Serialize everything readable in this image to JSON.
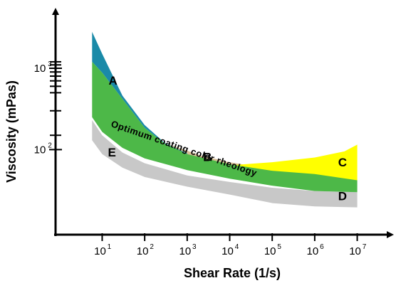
{
  "chart_data": {
    "type": "area",
    "xlabel": "Shear Rate (1/s)",
    "ylabel": "Viscosity (mPas)",
    "x_scale": "log",
    "y_scale": "log",
    "x_ticks": [
      {
        "value": 10,
        "base": "10",
        "exp": "1"
      },
      {
        "value": 100,
        "base": "10",
        "exp": "2"
      },
      {
        "value": 1000,
        "base": "10",
        "exp": "3"
      },
      {
        "value": 10000,
        "base": "10",
        "exp": "4"
      },
      {
        "value": 100000,
        "base": "10",
        "exp": "5"
      },
      {
        "value": 1000000,
        "base": "10",
        "exp": "6"
      },
      {
        "value": 10000000,
        "base": "10",
        "exp": "7"
      }
    ],
    "y_ticks": [
      {
        "value": 100,
        "base": "10",
        "exp": "2"
      },
      {
        "value": 1000,
        "base": "10",
        "exp": "3"
      }
    ],
    "y_minor_ticks": [
      150,
      300,
      500,
      600,
      700,
      800,
      900,
      1100,
      1200
    ],
    "xlim": [
      0.8,
      60000000
    ],
    "ylim": [
      9,
      5000
    ],
    "regions": [
      {
        "label": "D",
        "color": "#c8c8c8",
        "upper": [
          [
            5.8,
            230
          ],
          [
            10,
            150
          ],
          [
            30,
            92
          ],
          [
            100,
            68
          ],
          [
            1000,
            48
          ],
          [
            10000,
            40
          ],
          [
            100000,
            34
          ],
          [
            1000000,
            31
          ],
          [
            10000000,
            30
          ]
        ],
        "lower": [
          [
            5.8,
            130
          ],
          [
            10,
            88
          ],
          [
            30,
            60
          ],
          [
            100,
            46
          ],
          [
            1000,
            35
          ],
          [
            10000,
            28
          ],
          [
            100000,
            22
          ],
          [
            1000000,
            20
          ],
          [
            10000000,
            19.5
          ]
        ]
      },
      {
        "label": "B",
        "color": "#d8bf98",
        "upper": [
          [
            400,
            115
          ],
          [
            2000,
            85
          ],
          [
            10000,
            70
          ],
          [
            40000,
            62
          ]
        ],
        "lower": [
          [
            400,
            100
          ],
          [
            2000,
            70
          ],
          [
            10000,
            64
          ],
          [
            40000,
            62
          ]
        ]
      },
      {
        "label": "C",
        "color": "#ffff00",
        "upper": [
          [
            1300,
            80
          ],
          [
            10000,
            64
          ],
          [
            100000,
            70
          ],
          [
            1000000,
            80
          ],
          [
            5000000,
            95
          ],
          [
            10000000,
            115
          ]
        ],
        "lower": [
          [
            1300,
            62
          ],
          [
            10000,
            50
          ],
          [
            100000,
            44
          ],
          [
            1000000,
            43
          ],
          [
            10000000,
            42
          ]
        ]
      },
      {
        "label": "A",
        "color": "#1a8aa8",
        "upper": [
          [
            5.8,
            2800
          ],
          [
            10,
            1500
          ],
          [
            30,
            460
          ],
          [
            100,
            200
          ],
          [
            300,
            120
          ],
          [
            1000,
            90
          ]
        ],
        "lower": [
          [
            5.8,
            1200
          ],
          [
            10,
            880
          ],
          [
            30,
            420
          ],
          [
            100,
            185
          ],
          [
            300,
            118
          ],
          [
            1000,
            88
          ]
        ]
      },
      {
        "label": "Optimum coating color rheology",
        "color": "#4db848",
        "upper": [
          [
            5.8,
            1200
          ],
          [
            10,
            880
          ],
          [
            30,
            420
          ],
          [
            100,
            185
          ],
          [
            300,
            118
          ],
          [
            1000,
            88
          ],
          [
            10000,
            66
          ],
          [
            100000,
            55
          ],
          [
            1000000,
            50
          ],
          [
            10000000,
            42
          ]
        ],
        "lower": [
          [
            5.8,
            250
          ],
          [
            10,
            165
          ],
          [
            30,
            105
          ],
          [
            100,
            78
          ],
          [
            1000,
            56
          ],
          [
            10000,
            44
          ],
          [
            100000,
            36
          ],
          [
            1000000,
            31
          ],
          [
            10000000,
            30
          ]
        ]
      }
    ],
    "labels": [
      {
        "text": "A",
        "x": 18,
        "y": 630
      },
      {
        "text": "B",
        "x": 3000,
        "y": 72
      },
      {
        "text": "C",
        "x": 4500000,
        "y": 62
      },
      {
        "text": "D",
        "x": 4500000,
        "y": 24
      },
      {
        "text": "E",
        "x": 17,
        "y": 82
      }
    ],
    "band_label": {
      "text": "Optimum coating color rheology",
      "x": 800,
      "y": 95
    }
  }
}
